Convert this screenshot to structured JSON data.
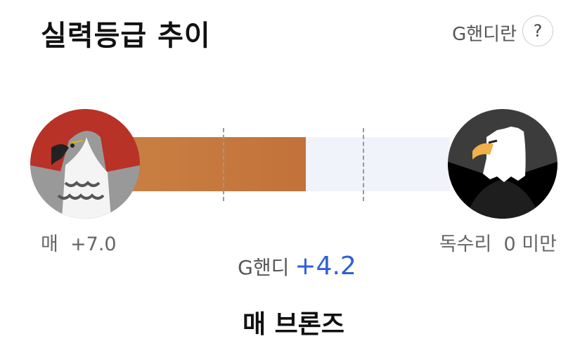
{
  "header": {
    "title": "실력등급 추이",
    "help_label": "G핸디란",
    "help_icon": "question-icon",
    "help_symbol": "?"
  },
  "progress": {
    "fill_fraction": 0.55,
    "fill_color": "#c67a3f",
    "track_color": "#f0f3f9"
  },
  "start": {
    "name": "매",
    "value": "+7.0",
    "icon": "hawk-icon"
  },
  "end": {
    "name": "독수리",
    "value": "0 미만",
    "icon": "eagle-icon"
  },
  "ghandi": {
    "label": "G핸디",
    "value": "+4.2",
    "value_color": "#2f5fd8"
  },
  "grade": "매 브론즈"
}
